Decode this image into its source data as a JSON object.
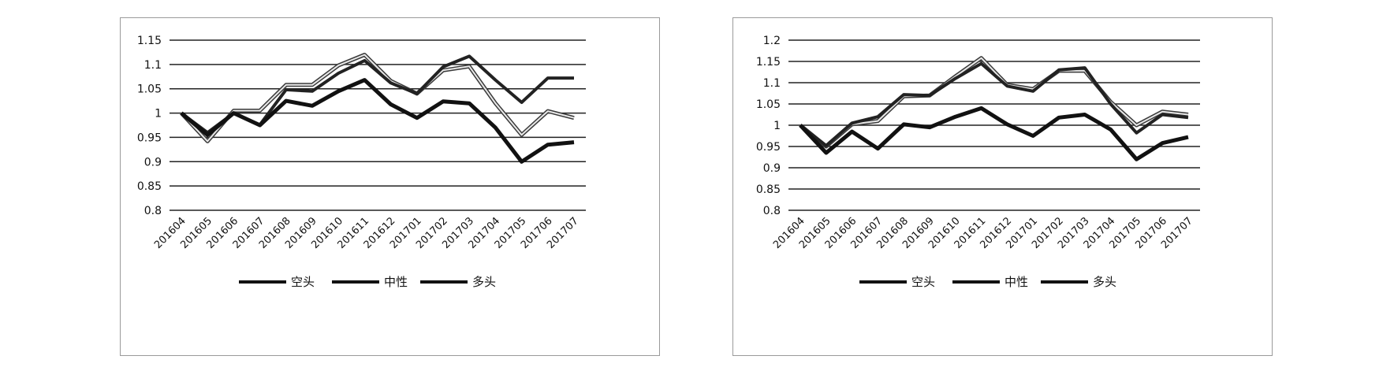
{
  "chart_data": [
    {
      "type": "line",
      "ylim": [
        0.8,
        1.15
      ],
      "yticks": [
        "0.8",
        "0.85",
        "0.9",
        "0.95",
        "1",
        "1.05",
        "1.1",
        "1.15"
      ],
      "ytick_values": [
        0.8,
        0.85,
        0.9,
        0.95,
        1.0,
        1.05,
        1.1,
        1.15
      ],
      "grid": "horizontal",
      "legend_position": "bottom",
      "categories": [
        "201604",
        "201605",
        "201606",
        "201607",
        "201608",
        "201609",
        "201610",
        "201611",
        "201612",
        "201701",
        "201702",
        "201703",
        "201704",
        "201705",
        "201706",
        "201707"
      ],
      "series": [
        {
          "name": "空头",
          "style": "thick",
          "color": "#111111",
          "values": [
            1.0,
            0.955,
            1.0,
            0.975,
            1.025,
            1.015,
            1.045,
            1.068,
            1.018,
            0.99,
            1.024,
            1.02,
            0.97,
            0.9,
            0.935,
            0.94
          ]
        },
        {
          "name": "中性",
          "style": "medium",
          "color": "#222222",
          "values": [
            1.0,
            0.96,
            1.0,
            0.976,
            1.048,
            1.045,
            1.082,
            1.108,
            1.062,
            1.04,
            1.095,
            1.117,
            1.068,
            1.022,
            1.072,
            1.072
          ]
        },
        {
          "name": "多头",
          "style": "double",
          "color": "#555555",
          "values": [
            1.0,
            0.942,
            1.005,
            1.005,
            1.058,
            1.058,
            1.098,
            1.12,
            1.066,
            1.04,
            1.088,
            1.096,
            1.02,
            0.955,
            1.004,
            0.99
          ]
        }
      ]
    },
    {
      "type": "line",
      "ylim": [
        0.8,
        1.2
      ],
      "yticks": [
        "0.8",
        "0.85",
        "0.9",
        "0.95",
        "1",
        "1.05",
        "1.1",
        "1.15",
        "1.2"
      ],
      "ytick_values": [
        0.8,
        0.85,
        0.9,
        0.95,
        1.0,
        1.05,
        1.1,
        1.15,
        1.2
      ],
      "grid": "horizontal",
      "legend_position": "bottom",
      "categories": [
        "201604",
        "201605",
        "201606",
        "201607",
        "201608",
        "201609",
        "201610",
        "201611",
        "201612",
        "201701",
        "201702",
        "201703",
        "201704",
        "201705",
        "201706",
        "201707"
      ],
      "series": [
        {
          "name": "空头",
          "style": "thick",
          "color": "#111111",
          "values": [
            1.0,
            0.935,
            0.985,
            0.945,
            1.002,
            0.995,
            1.02,
            1.04,
            1.002,
            0.975,
            1.018,
            1.025,
            0.99,
            0.92,
            0.958,
            0.972
          ]
        },
        {
          "name": "中性",
          "style": "medium",
          "color": "#222222",
          "values": [
            1.0,
            0.952,
            1.005,
            1.02,
            1.072,
            1.07,
            1.11,
            1.145,
            1.092,
            1.08,
            1.13,
            1.135,
            1.05,
            0.982,
            1.025,
            1.018
          ]
        },
        {
          "name": "多头",
          "style": "double",
          "color": "#555555",
          "values": [
            1.0,
            0.95,
            1.002,
            1.01,
            1.068,
            1.07,
            1.115,
            1.158,
            1.095,
            1.085,
            1.128,
            1.128,
            1.055,
            1.0,
            1.032,
            1.025
          ]
        }
      ]
    }
  ]
}
